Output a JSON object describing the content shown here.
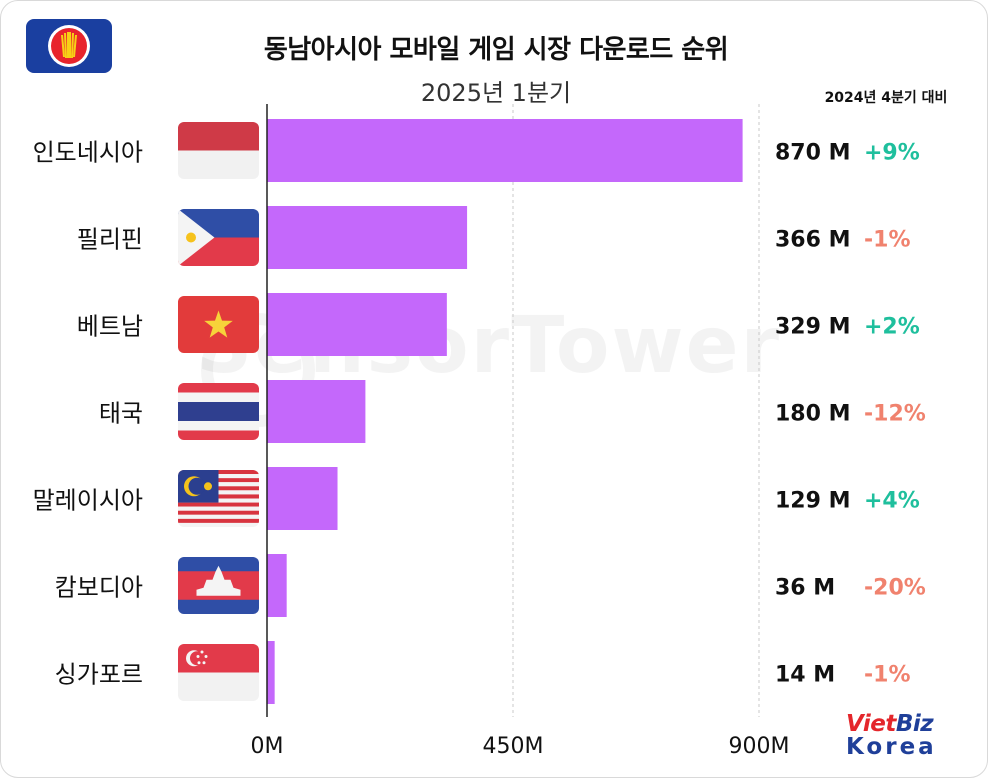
{
  "chart_data": {
    "type": "bar",
    "orientation": "horizontal",
    "title": "동남아시아 모바일 게임 시장 다운로드 순위",
    "subtitle": "2025년 1분기",
    "comparison_header": "2024년 4분기 대비",
    "categories": [
      "인도네시아",
      "필리핀",
      "베트남",
      "태국",
      "말레이시아",
      "캄보디아",
      "싱가포르"
    ],
    "values": [
      870,
      366,
      329,
      180,
      129,
      36,
      14
    ],
    "value_labels": [
      "870 M",
      "366 M",
      "329 M",
      "180 M",
      "129 M",
      "36 M",
      "14 M"
    ],
    "change_labels": [
      "+9%",
      "-1%",
      "+2%",
      "-12%",
      "+4%",
      "-20%",
      "-1%"
    ],
    "flags": [
      "indonesia-flag",
      "philippines-flag",
      "vietnam-flag",
      "thailand-flag",
      "malaysia-flag",
      "cambodia-flag",
      "singapore-flag"
    ],
    "x_ticks": [
      "0M",
      "450M",
      "900M"
    ],
    "xlim": [
      0,
      900
    ],
    "x_tick_values": [
      0,
      450,
      900
    ],
    "grid": "vertical dashed",
    "colors": {
      "bar": "#c468fb",
      "positive": "#1fbf9d",
      "negative": "#f0826e",
      "axis": "#222222",
      "grid": "#c9c9c9"
    }
  },
  "watermark": "SensorTower",
  "logo_asean": "asean-emblem",
  "brand_logo": {
    "top": "VietBiz",
    "bottom": "Korea"
  }
}
